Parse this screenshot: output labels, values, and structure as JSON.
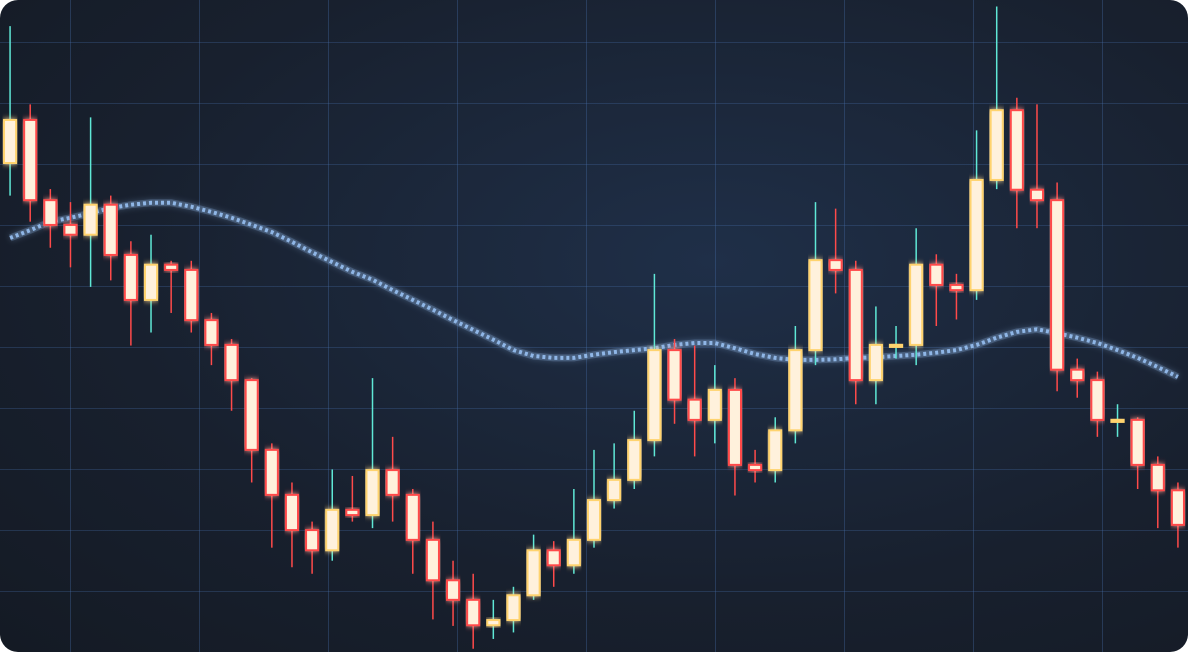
{
  "chart_data": {
    "type": "candlestick",
    "ylim": [
      0,
      100
    ],
    "up_color": "#ffd36e",
    "down_color": "#ff4a4a",
    "up_wick_color": "#5fe8d6",
    "body_fill": "#fff1dc",
    "open": [
      75,
      81.6,
      69.3,
      65.5,
      64.0,
      68.6,
      60.9,
      54.0,
      59.4,
      58.6,
      50.9,
      47.1,
      41.7,
      31.0,
      24.1,
      18.7,
      15.6,
      21.8,
      21.0,
      27.9,
      24.1,
      17.2,
      11.0,
      8.0,
      4.1,
      4.9,
      8.7,
      15.6,
      13.3,
      17.2,
      23.3,
      26.4,
      32.5,
      46.3,
      38.7,
      35.6,
      40.2,
      28.7,
      27.9,
      34.0,
      46.3,
      60.1,
      58.6,
      41.7,
      47.1,
      47.1,
      59.4,
      56.3,
      55.5,
      72.4,
      83.1,
      70.9,
      69.3,
      43.3,
      41.7,
      35.6,
      35.6,
      28.7,
      24.8
    ],
    "high": [
      96,
      84,
      71,
      69,
      82,
      70,
      63,
      64,
      60,
      60,
      52,
      48,
      42,
      32,
      26,
      20,
      28,
      27,
      42,
      33,
      25,
      20,
      14,
      12,
      8,
      10,
      18,
      17,
      25,
      31,
      32,
      37,
      58,
      48,
      47,
      44,
      42,
      31,
      36,
      50,
      69,
      68,
      60,
      53,
      50,
      65,
      61,
      58,
      80,
      99,
      85,
      84,
      72,
      45,
      43,
      38,
      36,
      30,
      26
    ],
    "low": [
      70,
      66,
      62,
      59,
      56,
      57,
      47,
      49,
      52,
      49,
      44,
      37,
      26,
      16,
      13,
      12,
      14,
      20,
      19,
      20,
      12,
      5,
      4,
      0.5,
      2,
      3,
      8,
      10,
      12,
      16,
      22,
      25,
      30,
      35,
      30,
      32,
      24,
      26,
      26,
      32,
      44,
      55,
      38,
      38,
      45,
      44,
      50,
      51,
      54,
      71,
      65,
      65,
      40,
      39,
      33,
      33,
      25,
      19,
      16
    ],
    "close": [
      81.6,
      69.3,
      65.5,
      64.0,
      68.6,
      60.9,
      54.0,
      59.4,
      58.6,
      50.9,
      47.1,
      41.7,
      31.0,
      24.1,
      18.7,
      15.6,
      21.8,
      21.0,
      27.9,
      24.1,
      17.2,
      11.0,
      8.0,
      4.1,
      4.9,
      8.7,
      15.6,
      13.3,
      17.2,
      23.3,
      26.4,
      32.5,
      46.3,
      38.7,
      35.6,
      40.2,
      28.7,
      27.9,
      34.0,
      46.3,
      60.1,
      58.6,
      41.7,
      47.1,
      47.1,
      59.4,
      56.3,
      55.5,
      72.4,
      83.1,
      70.9,
      69.3,
      43.3,
      41.7,
      35.6,
      35.6,
      28.7,
      24.8,
      19.5
    ],
    "moving_average": {
      "color": "#8fb6e6",
      "values": [
        63.5,
        64.7,
        66.0,
        66.6,
        67.3,
        68.1,
        68.6,
        68.9,
        68.9,
        68.3,
        67.5,
        66.6,
        65.5,
        64.4,
        62.9,
        61.3,
        59.8,
        58.3,
        57.1,
        55.5,
        54.0,
        52.5,
        50.9,
        49.4,
        47.9,
        46.3,
        45.4,
        45.1,
        45.1,
        45.6,
        46.0,
        46.3,
        46.6,
        47.1,
        47.4,
        47.4,
        46.6,
        45.7,
        45.1,
        44.8,
        44.8,
        44.9,
        45.1,
        45.2,
        45.4,
        45.6,
        45.9,
        46.3,
        47.1,
        48.2,
        49.1,
        49.5,
        48.9,
        48.2,
        47.4,
        46.3,
        45.1,
        43.7,
        42.2
      ]
    }
  }
}
